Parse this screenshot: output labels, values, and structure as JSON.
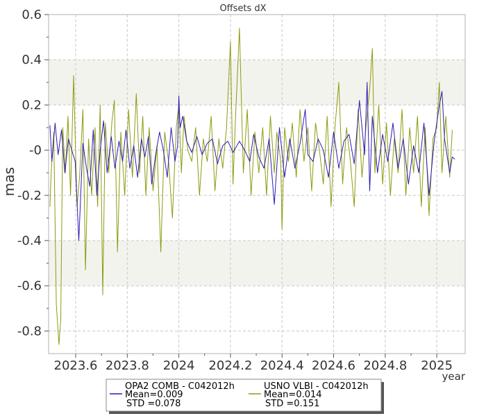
{
  "chart_data": {
    "type": "line",
    "title": "Offsets dX",
    "xlabel": "year",
    "ylabel": "mas",
    "xlim": [
      2023.495,
      2025.11
    ],
    "ylim": [
      -0.9,
      0.6
    ],
    "x_ticks": [
      "2023.6",
      "2023.8",
      "2024",
      "2024.2",
      "2024.4",
      "2024.6",
      "2024.8",
      "2025"
    ],
    "y_ticks": [
      "0.6",
      "0.4",
      "0.2",
      "-0",
      "-0.2",
      "-0.4",
      "-0.6",
      "-0.8"
    ],
    "grid": true,
    "shaded_bands": [
      [
        0.2,
        0.4
      ],
      [
        -0.6,
        -0.4
      ]
    ],
    "legend_position": "bottom",
    "colors": {
      "opa": "#2b1bb5",
      "usno": "#8f9a0e",
      "band": "#f3f3ee",
      "grid": "#c8c8c8"
    },
    "series": [
      {
        "name": "OPA2 COMB - C042012h",
        "mean_label": "Mean=0.009",
        "std_label": "STD =0.078",
        "x": [
          2023.5,
          2023.508,
          2023.52,
          2023.532,
          2023.545,
          2023.558,
          2023.572,
          2023.585,
          2023.598,
          2023.612,
          2023.628,
          2023.642,
          2023.655,
          2023.668,
          2023.682,
          2023.695,
          2023.708,
          2023.722,
          2023.738,
          2023.752,
          2023.768,
          2023.782,
          2023.795,
          2023.81,
          2023.825,
          2023.84,
          2023.855,
          2023.868,
          2023.882,
          2023.895,
          2023.91,
          2023.925,
          2023.94,
          2023.955,
          2023.97,
          2023.985,
          2023.995,
          2024.0,
          2024.005,
          2024.015,
          2024.03,
          2024.05,
          2024.07,
          2024.09,
          2024.11,
          2024.13,
          2024.15,
          2024.17,
          2024.19,
          2024.21,
          2024.235,
          2024.255,
          2024.275,
          2024.29,
          2024.31,
          2024.33,
          2024.35,
          2024.37,
          2024.39,
          2024.41,
          2024.43,
          2024.45,
          2024.47,
          2024.49,
          2024.5,
          2024.52,
          2024.54,
          2024.56,
          2024.58,
          2024.6,
          2024.62,
          2024.64,
          2024.66,
          2024.68,
          2024.7,
          2024.72,
          2024.73,
          2024.74,
          2024.75,
          2024.77,
          2024.79,
          2024.81,
          2024.83,
          2024.85,
          2024.87,
          2024.89,
          2024.91,
          2024.93,
          2024.95,
          2024.97,
          2024.99,
          2025.01,
          2025.02,
          2025.03,
          2025.05,
          2025.06,
          2025.07
        ],
        "y": [
          0.11,
          -0.05,
          0.12,
          -0.02,
          0.09,
          -0.1,
          0.05,
          0.0,
          -0.05,
          -0.4,
          0.03,
          -0.08,
          -0.16,
          0.09,
          -0.2,
          0.0,
          0.13,
          -0.1,
          0.06,
          -0.08,
          0.04,
          -0.05,
          0.09,
          -0.08,
          0.02,
          -0.12,
          0.05,
          -0.03,
          0.06,
          -0.15,
          -0.02,
          0.08,
          0.0,
          -0.12,
          0.1,
          -0.05,
          0.02,
          0.24,
          0.1,
          0.15,
          0.04,
          -0.01,
          0.06,
          -0.02,
          0.03,
          0.05,
          -0.06,
          0.02,
          0.04,
          -0.01,
          0.04,
          0.0,
          -0.05,
          0.07,
          -0.03,
          -0.08,
          0.05,
          -0.24,
          0.1,
          -0.12,
          0.05,
          -0.08,
          0.03,
          0.18,
          -0.02,
          -0.05,
          0.05,
          0.0,
          -0.12,
          0.08,
          -0.08,
          0.04,
          0.07,
          -0.06,
          0.22,
          -0.02,
          0.3,
          -0.18,
          0.15,
          -0.1,
          0.07,
          -0.05,
          0.12,
          -0.08,
          0.05,
          -0.15,
          0.02,
          -0.1,
          0.12,
          -0.2,
          0.04,
          0.2,
          0.26,
          0.05,
          -0.1,
          -0.03,
          -0.04
        ]
      },
      {
        "name": "USNO VLBI - C042012h",
        "mean_label": "Mean=0.014",
        "std_label": "STD =0.151",
        "x": [
          2023.5,
          2023.505,
          2023.515,
          2023.525,
          2023.535,
          2023.542,
          2023.55,
          2023.56,
          2023.57,
          2023.58,
          2023.592,
          2023.605,
          2023.615,
          2023.628,
          2023.638,
          2023.65,
          2023.662,
          2023.675,
          2023.685,
          2023.695,
          2023.705,
          2023.715,
          2023.728,
          2023.74,
          2023.75,
          2023.762,
          2023.775,
          2023.79,
          2023.805,
          2023.82,
          2023.835,
          2023.848,
          2023.86,
          2023.872,
          2023.885,
          2023.9,
          2023.915,
          2023.93,
          2023.945,
          2023.96,
          2023.975,
          2023.99,
          2024.0,
          2024.01,
          2024.02,
          2024.035,
          2024.05,
          2024.065,
          2024.08,
          2024.095,
          2024.11,
          2024.125,
          2024.14,
          2024.155,
          2024.17,
          2024.185,
          2024.2,
          2024.21,
          2024.22,
          2024.235,
          2024.25,
          2024.265,
          2024.28,
          2024.295,
          2024.31,
          2024.325,
          2024.34,
          2024.355,
          2024.37,
          2024.38,
          2024.395,
          2024.4,
          2024.41,
          2024.425,
          2024.44,
          2024.455,
          2024.47,
          2024.485,
          2024.5,
          2024.515,
          2024.53,
          2024.545,
          2024.56,
          2024.575,
          2024.59,
          2024.605,
          2024.62,
          2024.635,
          2024.65,
          2024.665,
          2024.68,
          2024.695,
          2024.71,
          2024.725,
          2024.74,
          2024.75,
          2024.76,
          2024.775,
          2024.79,
          2024.805,
          2024.82,
          2024.835,
          2024.85,
          2024.865,
          2024.88,
          2024.895,
          2024.91,
          2024.925,
          2024.94,
          2024.955,
          2024.97,
          2024.985,
          2025.0,
          2025.01,
          2025.02,
          2025.035,
          2025.05,
          2025.06
        ],
        "y": [
          -0.25,
          -0.1,
          0.08,
          -0.68,
          -0.86,
          -0.75,
          0.1,
          -0.1,
          0.15,
          -0.2,
          0.33,
          -0.25,
          -0.12,
          0.18,
          -0.53,
          0.05,
          -0.2,
          0.1,
          -0.25,
          0.2,
          -0.64,
          0.12,
          -0.1,
          0.12,
          0.22,
          -0.45,
          0.08,
          -0.2,
          0.18,
          -0.12,
          0.25,
          -0.1,
          0.15,
          -0.2,
          0.1,
          -0.18,
          0.02,
          -0.45,
          0.08,
          -0.05,
          -0.3,
          0.1,
          0.2,
          -0.1,
          0.15,
          0.0,
          -0.05,
          0.1,
          -0.2,
          0.05,
          -0.05,
          0.15,
          -0.18,
          0.05,
          -0.08,
          0.1,
          0.48,
          -0.15,
          0.15,
          0.54,
          -0.1,
          0.18,
          -0.2,
          0.08,
          -0.1,
          0.1,
          -0.2,
          0.15,
          -0.1,
          0.08,
          -0.05,
          -0.35,
          0.1,
          -0.05,
          0.12,
          -0.12,
          0.18,
          -0.05,
          0.1,
          -0.18,
          0.12,
          0.0,
          -0.15,
          0.15,
          -0.25,
          0.1,
          0.3,
          -0.15,
          0.1,
          -0.05,
          -0.25,
          0.18,
          -0.12,
          0.1,
          0.27,
          0.45,
          -0.1,
          0.2,
          -0.15,
          0.12,
          -0.2,
          0.05,
          -0.1,
          0.18,
          -0.2,
          0.1,
          -0.1,
          0.15,
          -0.25,
          0.1,
          -0.29,
          0.05,
          0.1,
          0.3,
          -0.1,
          0.15,
          -0.12,
          0.09
        ]
      }
    ]
  }
}
